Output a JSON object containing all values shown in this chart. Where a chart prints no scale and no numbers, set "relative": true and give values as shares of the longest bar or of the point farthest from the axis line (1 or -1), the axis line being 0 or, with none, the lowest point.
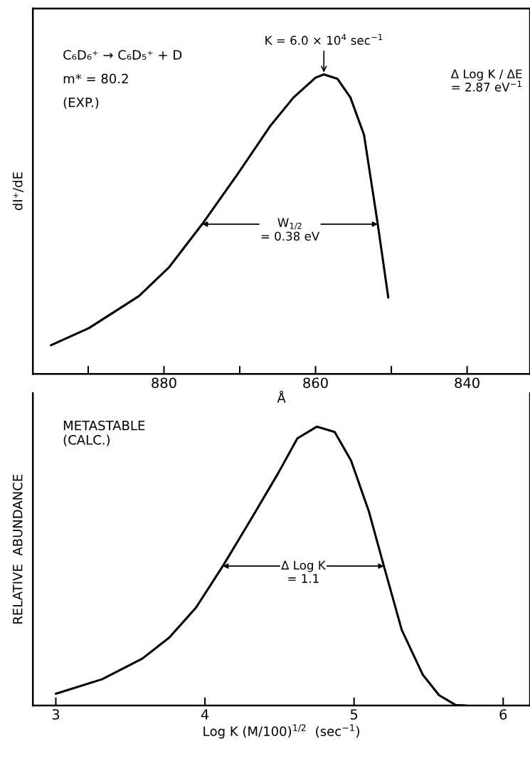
{
  "chart_data": [
    {
      "type": "line",
      "relative": true,
      "xlabel": "Å",
      "ylabel": "dI⁺/dE",
      "xlim": [
        897.3,
        831.7
      ],
      "xticks": [
        {
          "value": 890,
          "label": null
        },
        880,
        {
          "value": 870,
          "label": null
        },
        860,
        {
          "value": 850,
          "label": null
        },
        840
      ],
      "series": [
        {
          "color": "#000000",
          "x": [
            894.9,
            889.9,
            883.3,
            879.3,
            874.9,
            870.4,
            866.0,
            862.9,
            860.0,
            858.9,
            857.1,
            855.4,
            853.6,
            851.8,
            850.4
          ],
          "values": [
            0.096,
            0.153,
            0.26,
            0.357,
            0.502,
            0.663,
            0.827,
            0.923,
            0.989,
            1.0,
            0.985,
            0.923,
            0.798,
            0.502,
            0.255
          ]
        }
      ],
      "annotations": [
        "C₆D₆⁺ → C₆D₅⁺ + D",
        "m* = 80.2",
        "(EXP.)",
        {
          "text": "K = 6.0 × 10$^{4}$ sec$^{−1}$",
          "x": 858.9,
          "y": 1.0
        },
        "Δ Log K / ΔE\n= 2.87 eV$^{−1}$",
        "W$_{1/2}$\n= 0.38 eV"
      ]
    },
    {
      "type": "line",
      "relative": true,
      "xlabel": "Log K (M/100)$^{1/2}$  (sec$^{−1}$)",
      "ylabel": "RELATIVE  ABUNDANCE",
      "xlim": [
        2.846,
        6.18
      ],
      "xticks": [
        3,
        4,
        5,
        6
      ],
      "series": [
        {
          "color": "#000000",
          "x": [
            3.0,
            3.31,
            3.58,
            3.76,
            3.94,
            4.12,
            4.3,
            4.49,
            4.62,
            4.75,
            4.87,
            4.98,
            5.1,
            5.2,
            5.32,
            5.46,
            5.57,
            5.68,
            5.75
          ],
          "values": [
            0.042,
            0.094,
            0.168,
            0.243,
            0.351,
            0.5,
            0.66,
            0.832,
            0.958,
            1.0,
            0.981,
            0.878,
            0.695,
            0.5,
            0.271,
            0.111,
            0.037,
            0.002,
            0.0
          ]
        }
      ],
      "annotations": [
        "METASTABLE\n(CALC.)",
        "Δ Log K\n= 1.1"
      ]
    }
  ]
}
